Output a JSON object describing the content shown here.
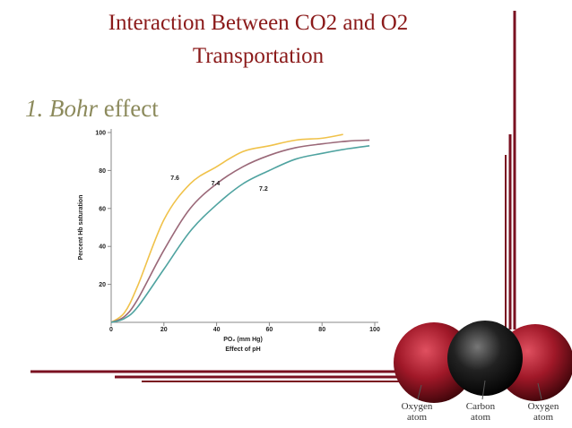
{
  "slide": {
    "title_lines": [
      "Interaction Between CO2 and O2",
      "Transportation"
    ],
    "heading": {
      "italic": "1. Bohr",
      "plain": "effect"
    }
  },
  "chart_data": {
    "type": "line",
    "subtitle": "Effect of pH",
    "x_label": "PO₂ (mm Hg)",
    "y_label": "Percent Hb saturation",
    "xlim": [
      0,
      100
    ],
    "ylim": [
      0,
      100
    ],
    "xticks": [
      0,
      20,
      40,
      60,
      80,
      100
    ],
    "yticks": [
      20,
      40,
      60,
      80,
      100
    ],
    "series": [
      {
        "name": "7.6",
        "color": "#f0c24a",
        "x": [
          0,
          5,
          10,
          20,
          30,
          40,
          50,
          60,
          70,
          80,
          88
        ],
        "values": [
          0,
          5,
          19,
          54,
          73,
          82,
          90,
          93,
          96,
          97,
          99
        ]
      },
      {
        "name": "7.4",
        "color": "#9a6878",
        "x": [
          0,
          5,
          10,
          20,
          30,
          40,
          50,
          60,
          70,
          80,
          90,
          98
        ],
        "values": [
          0,
          3,
          12,
          38,
          60,
          73,
          82,
          88,
          92,
          94,
          95.5,
          96
        ]
      },
      {
        "name": "7.2",
        "color": "#4fa3a0",
        "x": [
          0,
          5,
          10,
          20,
          30,
          40,
          50,
          60,
          70,
          80,
          90,
          98
        ],
        "values": [
          0,
          2,
          8,
          28,
          48,
          62,
          73,
          80,
          86,
          89,
          91.5,
          93
        ]
      }
    ]
  },
  "molecule": {
    "labels": [
      [
        "Oxygen",
        "atom"
      ],
      [
        "Carbon",
        "atom"
      ],
      [
        "Oxygen",
        "atom"
      ]
    ]
  }
}
